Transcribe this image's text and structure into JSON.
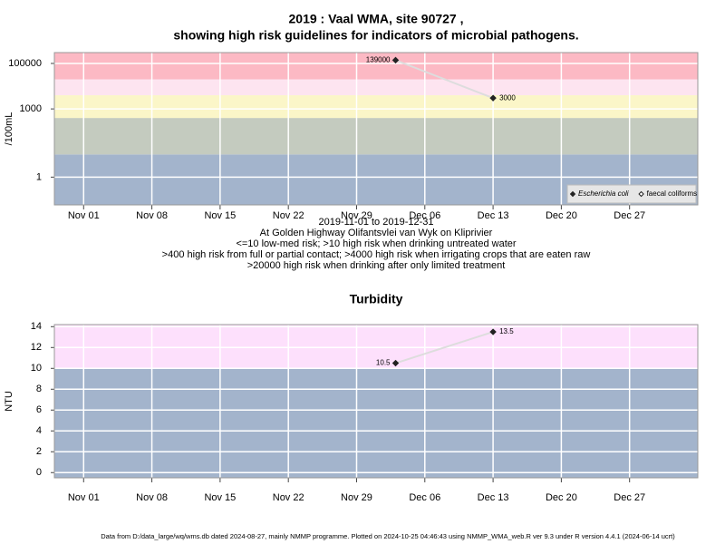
{
  "chart_data": [
    {
      "type": "line",
      "log_y": true,
      "title": [
        "2019 : Vaal WMA, site 90727 ,",
        "showing high risk guidelines for indicators of microbial pathogens."
      ],
      "notes": [
        "2019-11-01 to 2019-12-31",
        "At Golden Highway Olifantsvlei van Wyk on Kliprivier",
        "<=10 low-med risk; >10 high risk when drinking untreated water",
        ">400 high risk from full or partial contact; >4000 high risk when irrigating crops that are eaten raw",
        ">20000 high risk when drinking after only limited treatment"
      ],
      "ylabel": "/100mL",
      "x": [
        "2019-12-03",
        "2019-12-13"
      ],
      "series": [
        {
          "name": "Escherichia coli",
          "italic": true,
          "color": "#222222",
          "filled": true,
          "values": [
            139000,
            3000
          ]
        },
        {
          "name": "faecal coliforms",
          "italic": false,
          "color": "#222222",
          "filled": false,
          "values": [
            null,
            null
          ]
        }
      ],
      "line_color": "#dddddd",
      "thresholds": [
        10,
        400,
        4000,
        20000
      ],
      "band_colors": [
        "#a3b4cc",
        "#c4cbbf",
        "#fbf6c8",
        "#fde4f0",
        "#fcb9c4"
      ],
      "xlim": [
        "2019-10-29",
        "2020-01-03"
      ],
      "xticks": [
        {
          "value": "2019-11-01",
          "label": "Nov 01"
        },
        {
          "value": "2019-11-08",
          "label": "Nov 08"
        },
        {
          "value": "2019-11-15",
          "label": "Nov 15"
        },
        {
          "value": "2019-11-22",
          "label": "Nov 22"
        },
        {
          "value": "2019-11-29",
          "label": "Nov 29"
        },
        {
          "value": "2019-12-06",
          "label": "Dec 06"
        },
        {
          "value": "2019-12-13",
          "label": "Dec 13"
        },
        {
          "value": "2019-12-20",
          "label": "Dec 20"
        },
        {
          "value": "2019-12-27",
          "label": "Dec 27"
        }
      ],
      "ylim": [
        0.06,
        300000
      ],
      "yticks": [
        1,
        1000,
        100000
      ],
      "grid": true,
      "legend": "bottom-right"
    },
    {
      "type": "line",
      "log_y": false,
      "title": [
        "Turbidity"
      ],
      "ylabel": "NTU",
      "x": [
        "2019-12-03",
        "2019-12-13"
      ],
      "values": [
        10.5,
        13.5
      ],
      "color": "#222222",
      "line_color": "#dddddd",
      "thresholds": [
        10
      ],
      "band_colors": [
        "#a3b4cc",
        "#fde0fc"
      ],
      "xlim": [
        "2019-10-29",
        "2020-01-03"
      ],
      "xticks": [
        {
          "value": "2019-11-01",
          "label": "Nov 01"
        },
        {
          "value": "2019-11-08",
          "label": "Nov 08"
        },
        {
          "value": "2019-11-15",
          "label": "Nov 15"
        },
        {
          "value": "2019-11-22",
          "label": "Nov 22"
        },
        {
          "value": "2019-11-29",
          "label": "Nov 29"
        },
        {
          "value": "2019-12-06",
          "label": "Dec 06"
        },
        {
          "value": "2019-12-13",
          "label": "Dec 13"
        },
        {
          "value": "2019-12-20",
          "label": "Dec 20"
        },
        {
          "value": "2019-12-27",
          "label": "Dec 27"
        }
      ],
      "ylim": [
        -0.5,
        14.2
      ],
      "yticks": [
        0,
        2,
        4,
        6,
        8,
        10,
        12,
        14
      ],
      "grid": true
    }
  ],
  "footer": "Data from D:/data_large/wq/wms.db dated 2024-08-27, mainly NMMP programme. Plotted on 2024-10-25 04:46:43 using NMMP_WMA_web.R ver 9.3 under R version 4.4.1 (2024-06-14 ucrt)"
}
